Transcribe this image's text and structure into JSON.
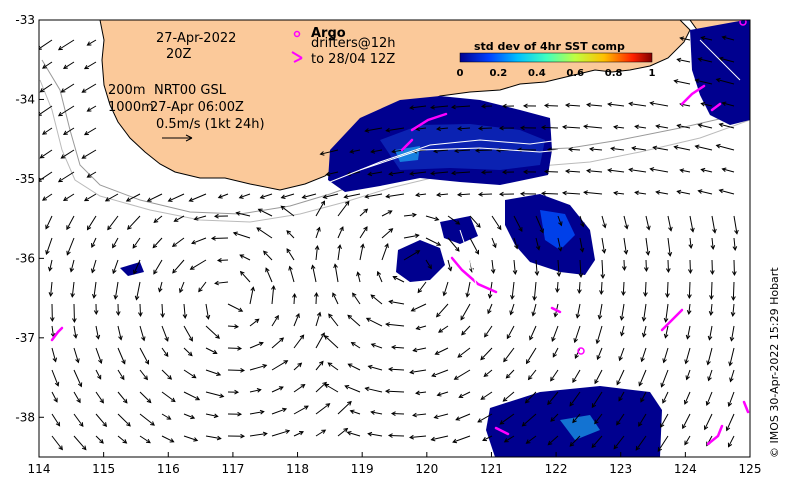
{
  "map": {
    "date_line1": "27-Apr-2022",
    "date_line2": "20Z",
    "depth_line1": "200m",
    "model_line1": "NRT00 GSL",
    "depth_line2": "1000m",
    "model_line2": "27-Apr 06:00Z",
    "scale_text": "0.5m/s (1kt 24h)",
    "argo_label": "Argo",
    "drifters_line1": "drifters@12h",
    "drifters_line2": "to 28/04 12Z",
    "colorbar_title": "std dev of 4hr SST comp",
    "colorbar_ticks": [
      "0",
      "0.2",
      "0.4",
      "0.6",
      "0.8",
      "1"
    ],
    "credit": "© IMOS 30-Apr-2022 15:29 Hobart",
    "x_ticks": [
      "114",
      "115",
      "116",
      "117",
      "118",
      "119",
      "120",
      "121",
      "122",
      "123",
      "124",
      "125"
    ],
    "y_ticks": [
      "-33",
      "-34",
      "-35",
      "-36",
      "-37",
      "-38"
    ],
    "x_range": [
      114,
      125
    ],
    "y_range": [
      -38.5,
      -33
    ],
    "colors": {
      "land": "#fbc99a",
      "sst_low": "#00008f",
      "sst_mid": "#00d0ff",
      "sst_high": "#ff2000",
      "drifter": "#ff00ff",
      "coast": "#000000"
    }
  }
}
